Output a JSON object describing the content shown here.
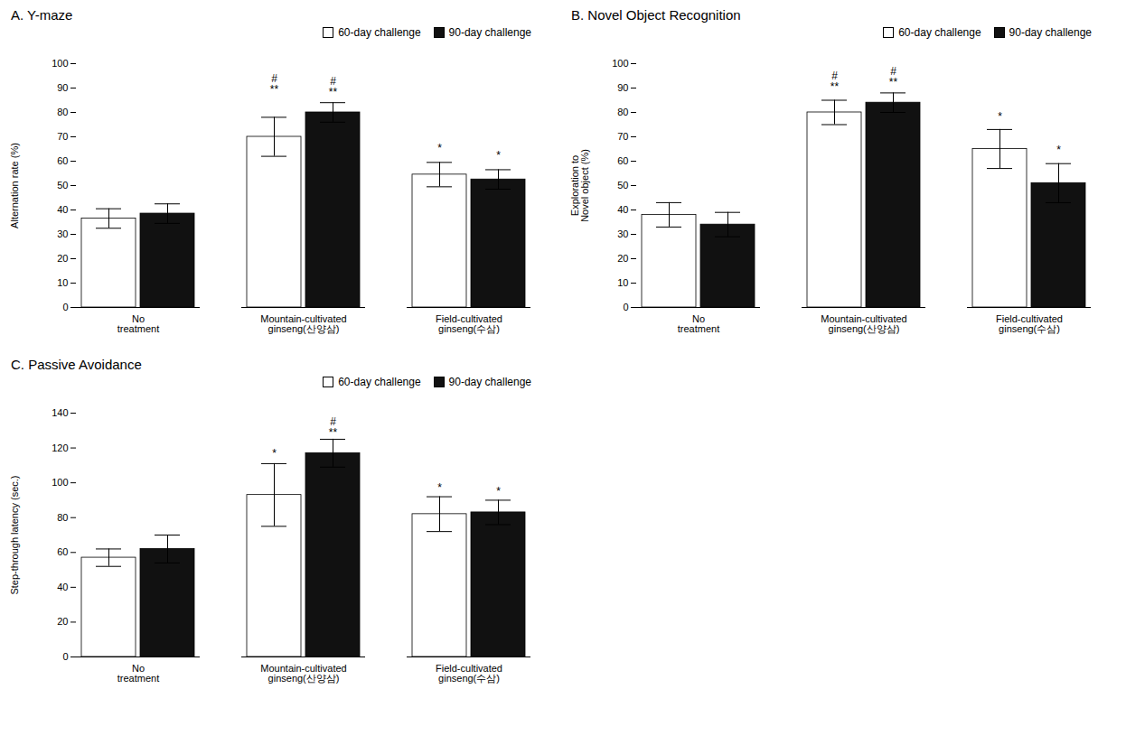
{
  "chart_data": [
    {
      "type": "bar",
      "title": "A. Y-maze",
      "ylabel": "Alternation rate (%)",
      "categories": [
        "No\ntreatment",
        "Mountain-cultivated\nginseng(산양삼)",
        "Field-cultivated\nginseng(수삼)"
      ],
      "series": [
        {
          "name": "60-day challenge",
          "color": "#ffffff",
          "values": [
            36.5,
            70,
            54.5
          ],
          "errors": [
            4,
            8,
            5
          ],
          "annotations": [
            null,
            "#\n**",
            "*"
          ],
          "annotation_y": [
            null,
            88,
            64
          ]
        },
        {
          "name": "90-day challenge",
          "color": "#111111",
          "values": [
            38.5,
            80,
            52.5
          ],
          "errors": [
            4,
            4,
            4
          ],
          "annotations": [
            null,
            "#\n**",
            "*"
          ],
          "annotation_y": [
            null,
            87,
            61
          ]
        }
      ],
      "ylim": [
        0,
        100
      ],
      "yticks": [
        0,
        10,
        20,
        30,
        40,
        50,
        60,
        70,
        80,
        90,
        100
      ],
      "legend": "upper right"
    },
    {
      "type": "bar",
      "title": "B. Novel Object Recognition",
      "ylabel": "Exploration to\nNovel object (%)",
      "categories": [
        "No\ntreatment",
        "Mountain-cultivated\nginseng(산양삼)",
        "Field-cultivated\nginseng(수삼)"
      ],
      "series": [
        {
          "name": "60-day challenge",
          "color": "#ffffff",
          "values": [
            38,
            80,
            65
          ],
          "errors": [
            5,
            5,
            8
          ],
          "annotations": [
            null,
            "#\n**",
            "*"
          ],
          "annotation_y": [
            null,
            89,
            77
          ]
        },
        {
          "name": "90-day challenge",
          "color": "#111111",
          "values": [
            34,
            84,
            51
          ],
          "errors": [
            5,
            4,
            8
          ],
          "annotations": [
            null,
            "#\n**",
            "*"
          ],
          "annotation_y": [
            null,
            91,
            63
          ]
        }
      ],
      "ylim": [
        0,
        100
      ],
      "yticks": [
        0,
        10,
        20,
        30,
        40,
        50,
        60,
        70,
        80,
        90,
        100
      ],
      "legend": "upper right"
    },
    {
      "type": "bar",
      "title": "C. Passive Avoidance",
      "ylabel": "Step-through latency (sec.)",
      "categories": [
        "No\ntreatment",
        "Mountain-cultivated\nginseng(산양삼)",
        "Field-cultivated\nginseng(수삼)"
      ],
      "series": [
        {
          "name": "60-day challenge",
          "color": "#ffffff",
          "values": [
            57,
            93,
            82
          ],
          "errors": [
            5,
            18,
            10
          ],
          "annotations": [
            null,
            "*",
            "*"
          ],
          "annotation_y": [
            null,
            115,
            95
          ]
        },
        {
          "name": "90-day challenge",
          "color": "#111111",
          "values": [
            62,
            117,
            83
          ],
          "errors": [
            8,
            8,
            7
          ],
          "annotations": [
            null,
            "#\n**",
            "*"
          ],
          "annotation_y": [
            null,
            127,
            93
          ]
        }
      ],
      "ylim": [
        0,
        140
      ],
      "yticks": [
        0,
        20,
        40,
        60,
        80,
        100,
        120,
        140
      ],
      "legend": "upper right"
    }
  ]
}
